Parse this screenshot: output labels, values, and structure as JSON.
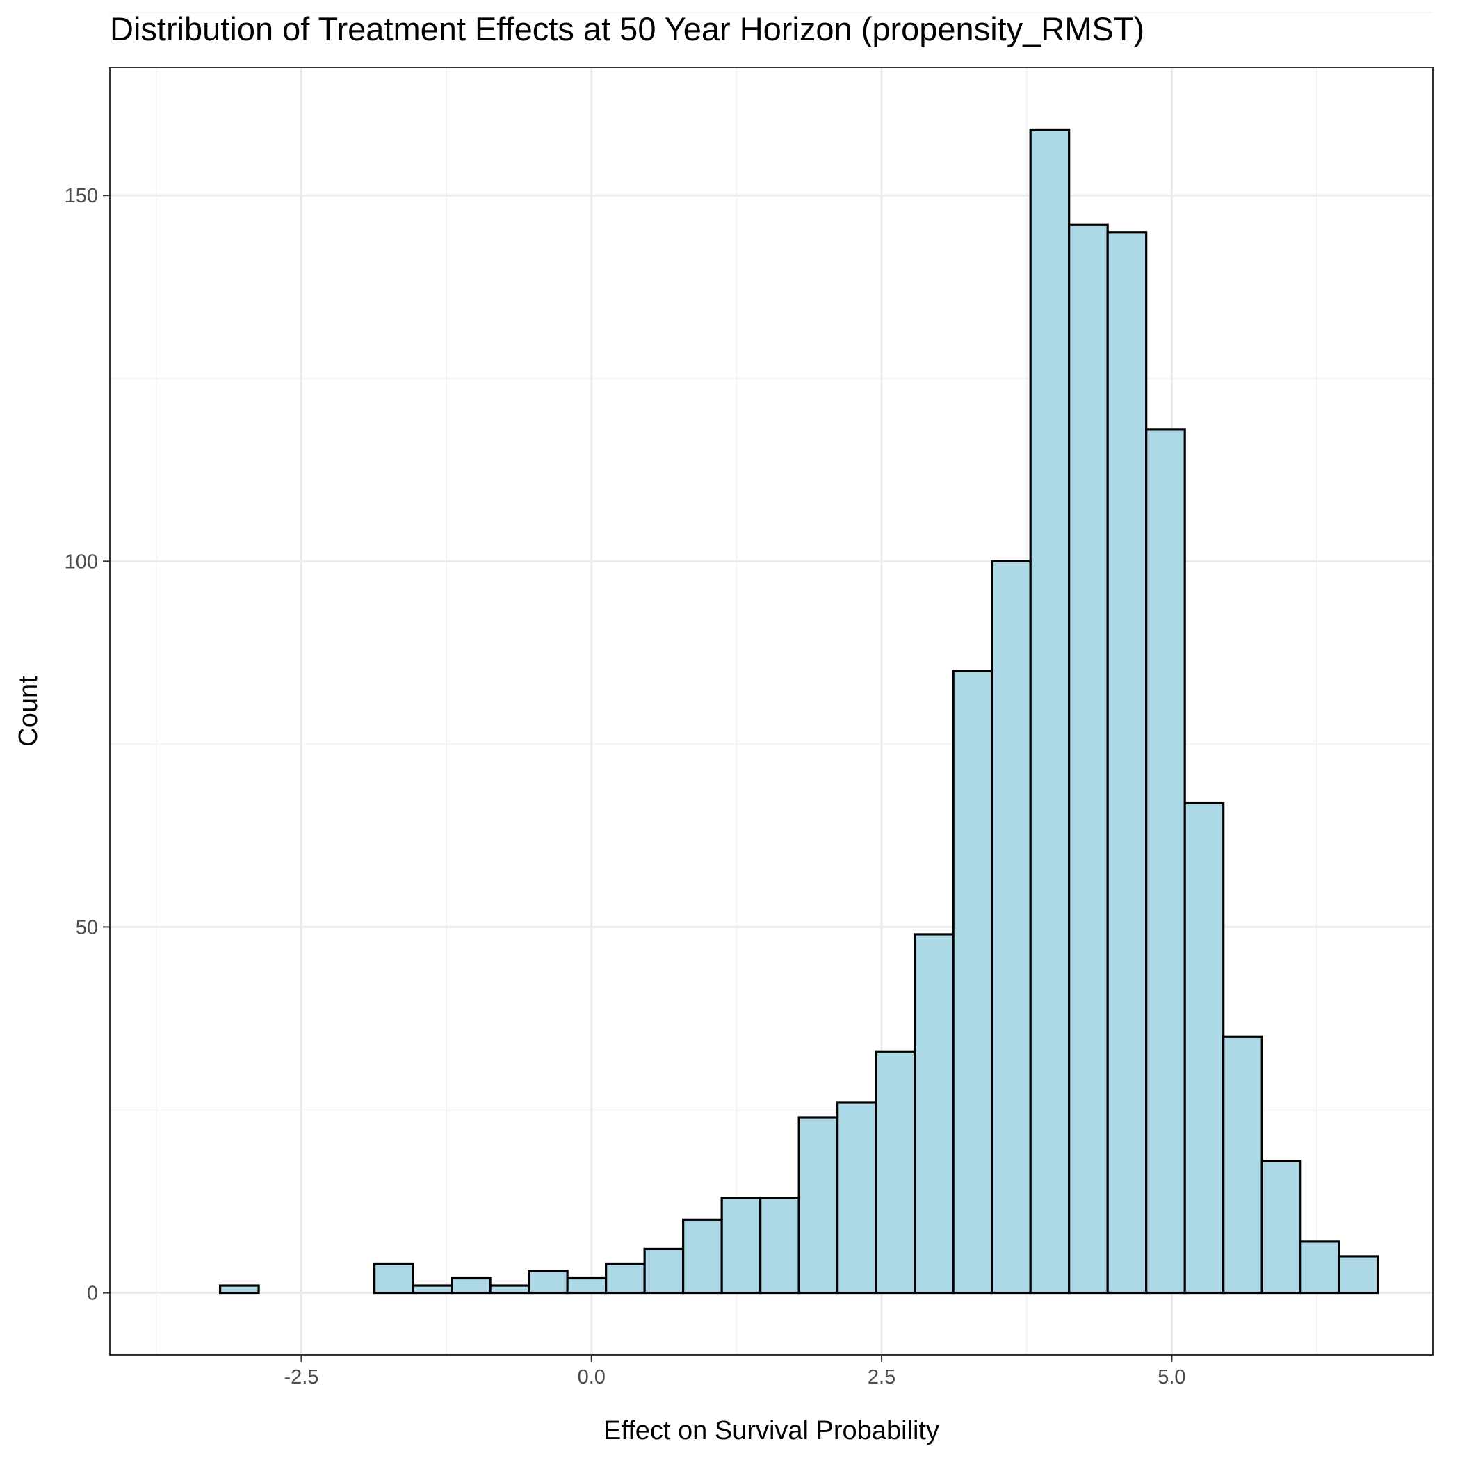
{
  "chart_data": {
    "type": "bar",
    "title": "Distribution of Treatment Effects at 50 Year Horizon (propensity_RMST)",
    "xlabel": "Effect on Survival Probability",
    "ylabel": "Count",
    "xlim": [
      -4.15,
      7.25
    ],
    "ylim": [
      -8.5,
      167.5
    ],
    "x_ticks": [
      -2.5,
      0.0,
      2.5,
      5.0
    ],
    "x_tick_labels": [
      "-2.5",
      "0.0",
      "2.5",
      "5.0"
    ],
    "y_ticks": [
      0,
      50,
      100,
      150
    ],
    "y_tick_labels": [
      "0",
      "50",
      "100",
      "150"
    ],
    "bin_start": -3.2,
    "bin_width": 0.3325,
    "values": [
      1,
      0,
      0,
      0,
      4,
      1,
      2,
      1,
      3,
      2,
      4,
      6,
      10,
      13,
      13,
      24,
      26,
      33,
      49,
      85,
      100,
      159,
      146,
      145,
      118,
      67,
      35,
      18,
      7,
      5
    ],
    "grid": true,
    "colors": {
      "bar_fill": "#add8e6",
      "bar_stroke": "#000000",
      "grid_major": "#ebebeb",
      "grid_minor": "#f4f4f4",
      "panel_border": "#333333"
    }
  }
}
